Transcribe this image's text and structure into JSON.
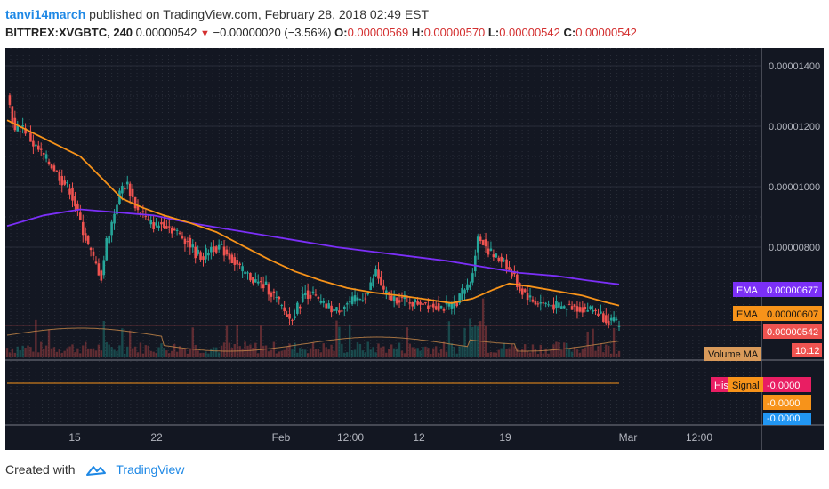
{
  "header": {
    "author": "tanvi14march",
    "published": "published on TradingView.com, February 28, 2018 02:49 EST",
    "symbol": "BITTREX:XVGBTC, 240",
    "last": "0.00000542",
    "change": "−0.00000020 (−3.56%)",
    "open_label": "O:",
    "open": "0.00000569",
    "high_label": "H:",
    "high": "0.00000570",
    "low_label": "L:",
    "low": "0.00000542",
    "close_label": "C:",
    "close": "0.00000542"
  },
  "footer": {
    "created_with": "Created with",
    "brand": "TradingView"
  },
  "colors": {
    "background": "#131722",
    "grid": "#2a2e39",
    "up": "#26a69a",
    "down": "#ef5350",
    "ema_long": "#7b2ff7",
    "ema_short": "#f7931a",
    "price_line": "#ef5350",
    "axis_text": "#b2b5be",
    "volume_ma": "#c98a4a"
  },
  "chart_data": {
    "type": "candlestick",
    "x_ticks": [
      "15",
      "22",
      "Feb",
      "12:00",
      "12",
      "19",
      "Mar",
      "12:00"
    ],
    "y_ticks": [
      "0.00001400",
      "0.00001200",
      "0.00001000",
      "0.00000800"
    ],
    "ylim": [
      4.5e-06,
      1.46e-05
    ],
    "price_series": [
      [
        0,
        1310
      ],
      [
        3,
        1180
      ],
      [
        6,
        1200
      ],
      [
        10,
        1140
      ],
      [
        14,
        1100
      ],
      [
        18,
        1060
      ],
      [
        21,
        1020
      ],
      [
        24,
        990
      ],
      [
        26,
        940
      ],
      [
        28,
        880
      ],
      [
        30,
        830
      ],
      [
        32,
        780
      ],
      [
        34,
        740
      ],
      [
        36,
        700
      ],
      [
        38,
        820
      ],
      [
        40,
        880
      ],
      [
        42,
        950
      ],
      [
        44,
        1000
      ],
      [
        46,
        1005
      ],
      [
        48,
        960
      ],
      [
        50,
        920
      ],
      [
        52,
        910
      ],
      [
        54,
        880
      ],
      [
        57,
        870
      ],
      [
        60,
        880
      ],
      [
        63,
        860
      ],
      [
        66,
        840
      ],
      [
        69,
        820
      ],
      [
        72,
        780
      ],
      [
        75,
        770
      ],
      [
        78,
        800
      ],
      [
        81,
        800
      ],
      [
        84,
        780
      ],
      [
        87,
        750
      ],
      [
        90,
        720
      ],
      [
        93,
        700
      ],
      [
        96,
        680
      ],
      [
        99,
        670
      ],
      [
        102,
        640
      ],
      [
        105,
        600
      ],
      [
        108,
        560
      ],
      [
        111,
        600
      ],
      [
        114,
        650
      ],
      [
        117,
        640
      ],
      [
        120,
        610
      ],
      [
        123,
        600
      ],
      [
        126,
        590
      ],
      [
        129,
        610
      ],
      [
        132,
        620
      ],
      [
        135,
        630
      ],
      [
        138,
        650
      ],
      [
        141,
        720
      ],
      [
        144,
        650
      ],
      [
        147,
        630
      ],
      [
        150,
        630
      ],
      [
        153,
        625
      ],
      [
        156,
        615
      ],
      [
        159,
        620
      ],
      [
        162,
        610
      ],
      [
        165,
        605
      ],
      [
        168,
        600
      ],
      [
        171,
        610
      ],
      [
        174,
        650
      ],
      [
        177,
        680
      ],
      [
        180,
        830
      ],
      [
        182,
        820
      ],
      [
        184,
        790
      ],
      [
        186,
        770
      ],
      [
        188,
        760
      ],
      [
        190,
        760
      ],
      [
        192,
        720
      ],
      [
        194,
        700
      ],
      [
        196,
        660
      ],
      [
        198,
        650
      ],
      [
        201,
        620
      ],
      [
        204,
        615
      ],
      [
        207,
        610
      ],
      [
        210,
        605
      ],
      [
        213,
        600
      ],
      [
        216,
        605
      ],
      [
        219,
        598
      ],
      [
        222,
        595
      ],
      [
        225,
        590
      ],
      [
        228,
        570
      ],
      [
        231,
        555
      ],
      [
        234,
        542
      ]
    ],
    "ema_long": [
      [
        0,
        870
      ],
      [
        14,
        905
      ],
      [
        28,
        925
      ],
      [
        42,
        915
      ],
      [
        56,
        905
      ],
      [
        70,
        880
      ],
      [
        84,
        860
      ],
      [
        98,
        840
      ],
      [
        112,
        820
      ],
      [
        126,
        800
      ],
      [
        140,
        785
      ],
      [
        154,
        770
      ],
      [
        168,
        755
      ],
      [
        182,
        735
      ],
      [
        196,
        715
      ],
      [
        210,
        705
      ],
      [
        222,
        690
      ],
      [
        234,
        677
      ]
    ],
    "ema_short": [
      [
        0,
        1220
      ],
      [
        14,
        1160
      ],
      [
        28,
        1100
      ],
      [
        36,
        1030
      ],
      [
        44,
        960
      ],
      [
        52,
        930
      ],
      [
        60,
        905
      ],
      [
        70,
        880
      ],
      [
        80,
        850
      ],
      [
        90,
        805
      ],
      [
        100,
        760
      ],
      [
        110,
        720
      ],
      [
        120,
        690
      ],
      [
        130,
        665
      ],
      [
        140,
        650
      ],
      [
        150,
        640
      ],
      [
        160,
        628
      ],
      [
        170,
        615
      ],
      [
        178,
        630
      ],
      [
        186,
        660
      ],
      [
        192,
        680
      ],
      [
        200,
        670
      ],
      [
        210,
        655
      ],
      [
        220,
        640
      ],
      [
        228,
        620
      ],
      [
        234,
        607
      ]
    ],
    "labels": {
      "ema_long_tag": "EMA",
      "ema_long_value": "0.00000677",
      "ema_short_tag": "EMA",
      "ema_short_value": "0.00000607",
      "last_value": "0.00000542",
      "volume_ma_tag": "Volume MA",
      "countdown": "10:12",
      "macd_hist_tag": "His",
      "macd_signal_tag": "Signal",
      "macd_v1": "-0.0000",
      "macd_v2": "-0.0000",
      "macd_v3": "-0.0000"
    }
  }
}
